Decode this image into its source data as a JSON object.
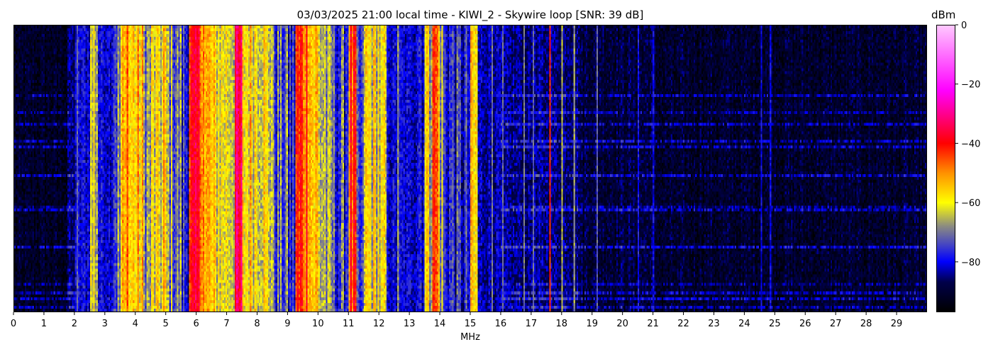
{
  "chart_data": {
    "type": "heatmap",
    "title": "03/03/2025 21:00 local time - KIWI_2 - Skywire loop [SNR: 39 dB]",
    "xlabel": "MHz",
    "ylabel": "",
    "xlim": [
      0,
      30
    ],
    "x_ticks": [
      0,
      1,
      2,
      3,
      4,
      5,
      6,
      7,
      8,
      9,
      10,
      11,
      12,
      13,
      14,
      15,
      16,
      17,
      18,
      19,
      20,
      21,
      22,
      23,
      24,
      25,
      26,
      27,
      28,
      29
    ],
    "colorbar": {
      "label": "dBm",
      "range": [
        -97,
        0
      ],
      "ticks": [
        0,
        -20,
        -40,
        -60,
        -80
      ]
    },
    "colormap": [
      [
        -97,
        "#000000"
      ],
      [
        -87,
        "#00004a"
      ],
      [
        -80,
        "#0000ff"
      ],
      [
        -74,
        "#4848c0"
      ],
      [
        -68,
        "#8c8c80"
      ],
      [
        -60,
        "#ffff00"
      ],
      [
        -50,
        "#ff9000"
      ],
      [
        -40,
        "#ff0000"
      ],
      [
        -22,
        "#ff00ff"
      ],
      [
        0,
        "#ffc8ff"
      ]
    ],
    "band_levels_dBm": [
      [
        0,
        1.75,
        -92
      ],
      [
        1.75,
        2.0,
        -86
      ],
      [
        2.0,
        2.5,
        -80
      ],
      [
        2.5,
        2.75,
        -64
      ],
      [
        2.75,
        3.25,
        -80
      ],
      [
        3.25,
        3.5,
        -72
      ],
      [
        3.5,
        4.25,
        -57
      ],
      [
        4.25,
        4.5,
        -68
      ],
      [
        4.5,
        5.0,
        -62
      ],
      [
        5.0,
        5.25,
        -67
      ],
      [
        5.25,
        5.5,
        -71
      ],
      [
        5.5,
        5.75,
        -77
      ],
      [
        5.75,
        6.25,
        -43
      ],
      [
        6.25,
        6.5,
        -55
      ],
      [
        6.5,
        7.25,
        -60
      ],
      [
        7.25,
        7.5,
        -38
      ],
      [
        7.5,
        8.25,
        -58
      ],
      [
        8.25,
        8.5,
        -62
      ],
      [
        8.5,
        9.0,
        -73
      ],
      [
        9.0,
        9.25,
        -78
      ],
      [
        9.25,
        9.75,
        -45
      ],
      [
        9.75,
        10.0,
        -55
      ],
      [
        10.0,
        10.25,
        -64
      ],
      [
        10.25,
        10.5,
        -70
      ],
      [
        10.5,
        11.0,
        -75
      ],
      [
        11.0,
        11.25,
        -46
      ],
      [
        11.25,
        11.5,
        -79
      ],
      [
        11.5,
        12.0,
        -60
      ],
      [
        12.0,
        12.25,
        -64
      ],
      [
        12.25,
        13.25,
        -81
      ],
      [
        13.25,
        13.5,
        -77
      ],
      [
        13.5,
        13.75,
        -62
      ],
      [
        13.75,
        14.0,
        -48
      ],
      [
        14.0,
        14.5,
        -77
      ],
      [
        14.5,
        15.0,
        -79
      ],
      [
        15.0,
        15.25,
        -60
      ],
      [
        15.25,
        16.0,
        -83
      ],
      [
        16.0,
        18.6,
        -85
      ],
      [
        18.6,
        21.0,
        -89
      ],
      [
        21.0,
        30.0,
        -91
      ]
    ],
    "carriers_MHz_dBm": [
      [
        2.05,
        -72
      ],
      [
        2.6,
        -58
      ],
      [
        3.7,
        -45
      ],
      [
        4.9,
        -50
      ],
      [
        6.0,
        -40
      ],
      [
        7.3,
        -32
      ],
      [
        9.4,
        -40
      ],
      [
        9.6,
        -38
      ],
      [
        11.05,
        -42
      ],
      [
        11.85,
        -55
      ],
      [
        12.6,
        -68
      ],
      [
        13.6,
        -55
      ],
      [
        13.8,
        -42
      ],
      [
        14.05,
        -60
      ],
      [
        15.05,
        -55
      ],
      [
        15.7,
        -70
      ],
      [
        16.05,
        -72
      ],
      [
        16.75,
        -70
      ],
      [
        17.05,
        -72
      ],
      [
        17.65,
        -42
      ],
      [
        18.0,
        -65
      ],
      [
        18.4,
        -68
      ],
      [
        19.15,
        -72
      ],
      [
        20.5,
        -78
      ],
      [
        21.0,
        -80
      ],
      [
        24.55,
        -80
      ],
      [
        24.85,
        -80
      ]
    ]
  }
}
